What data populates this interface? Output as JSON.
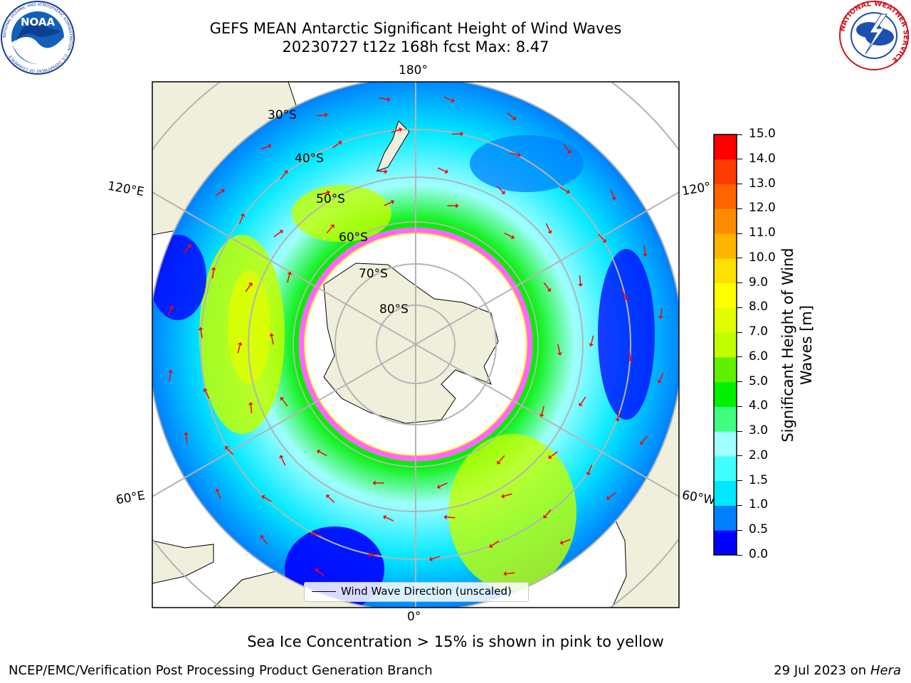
{
  "header": {
    "title_line1": "GEFS MEAN Antarctic Significant Height of Wind Waves",
    "title_line2": "20230727 t12z 168h fcst   Max: 8.47"
  },
  "logos": {
    "left": {
      "name": "NOAA",
      "ring_text": "NATIONAL OCEANIC AND ATMOSPHERIC ADMINISTRATION · U.S. DEPARTMENT OF COMMERCE"
    },
    "right": {
      "name": "National Weather Service",
      "ring_text": "NATIONAL WEATHER SERVICE"
    }
  },
  "map": {
    "projection": "south-polar-stereographic",
    "longitude_labels": [
      "180°",
      "120°E",
      "120°",
      "60°E",
      "60°W",
      "0°"
    ],
    "latitude_labels": [
      "30°S",
      "40°S",
      "50°S",
      "60°S",
      "70°S",
      "80°S"
    ],
    "legend_label": "Wind Wave Direction (unscaled)",
    "colors": {
      "land": "#efefdb",
      "sea_ice": "#ff66ff",
      "arrows": "#ff0000",
      "grid": "#b4b4b4"
    }
  },
  "colorbar": {
    "title_line1": "Significant Height of Wind",
    "title_line2": "Waves [m]",
    "ticks": [
      "0.0",
      "0.5",
      "1.0",
      "1.5",
      "2.0",
      "3.0",
      "4.0",
      "5.0",
      "6.0",
      "7.0",
      "8.0",
      "9.0",
      "10.0",
      "11.0",
      "12.0",
      "13.0",
      "14.0",
      "15.0"
    ],
    "colors": [
      "#0000ff",
      "#0080ff",
      "#00e8ff",
      "#40ffff",
      "#a0ffff",
      "#40ff80",
      "#00f000",
      "#60f000",
      "#c0ff00",
      "#e0ff00",
      "#ffff00",
      "#ffe000",
      "#ffb400",
      "#ff8c00",
      "#ff6400",
      "#ff3c00",
      "#ff0000"
    ]
  },
  "caption": "Sea Ice Concentration > 15% is shown in pink to yellow",
  "footer": {
    "left": "NCEP/EMC/Verification Post Processing Product Generation Branch",
    "right_date": "29 Jul 2023 on ",
    "right_host": "Hera"
  }
}
